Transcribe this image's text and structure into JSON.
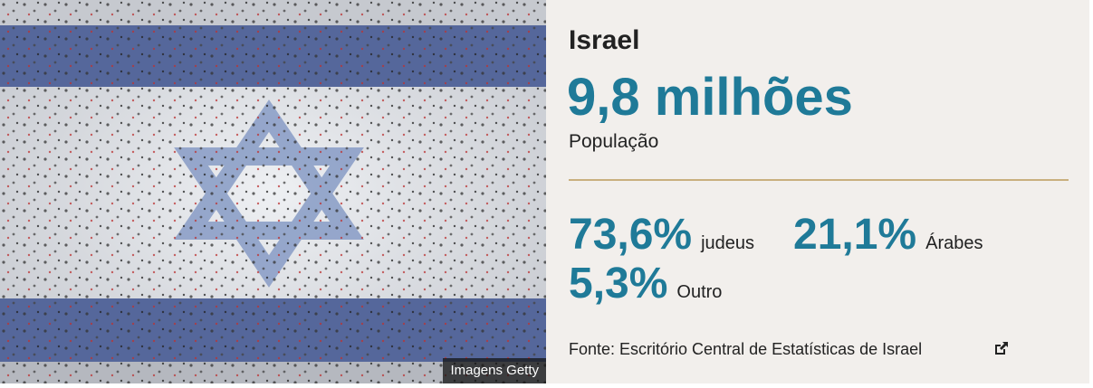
{
  "image": {
    "credit": "Imagens Getty"
  },
  "header": {
    "title": "Israel",
    "headline": "9,8 milhões",
    "subtitle": "População"
  },
  "stats": [
    {
      "value": "73,6%",
      "label": "judeus"
    },
    {
      "value": "21,1%",
      "label": "Árabes"
    },
    {
      "value": "5,3%",
      "label": "Outro"
    }
  ],
  "source": "Fonte: Escritório Central de Estatísticas de Israel"
}
